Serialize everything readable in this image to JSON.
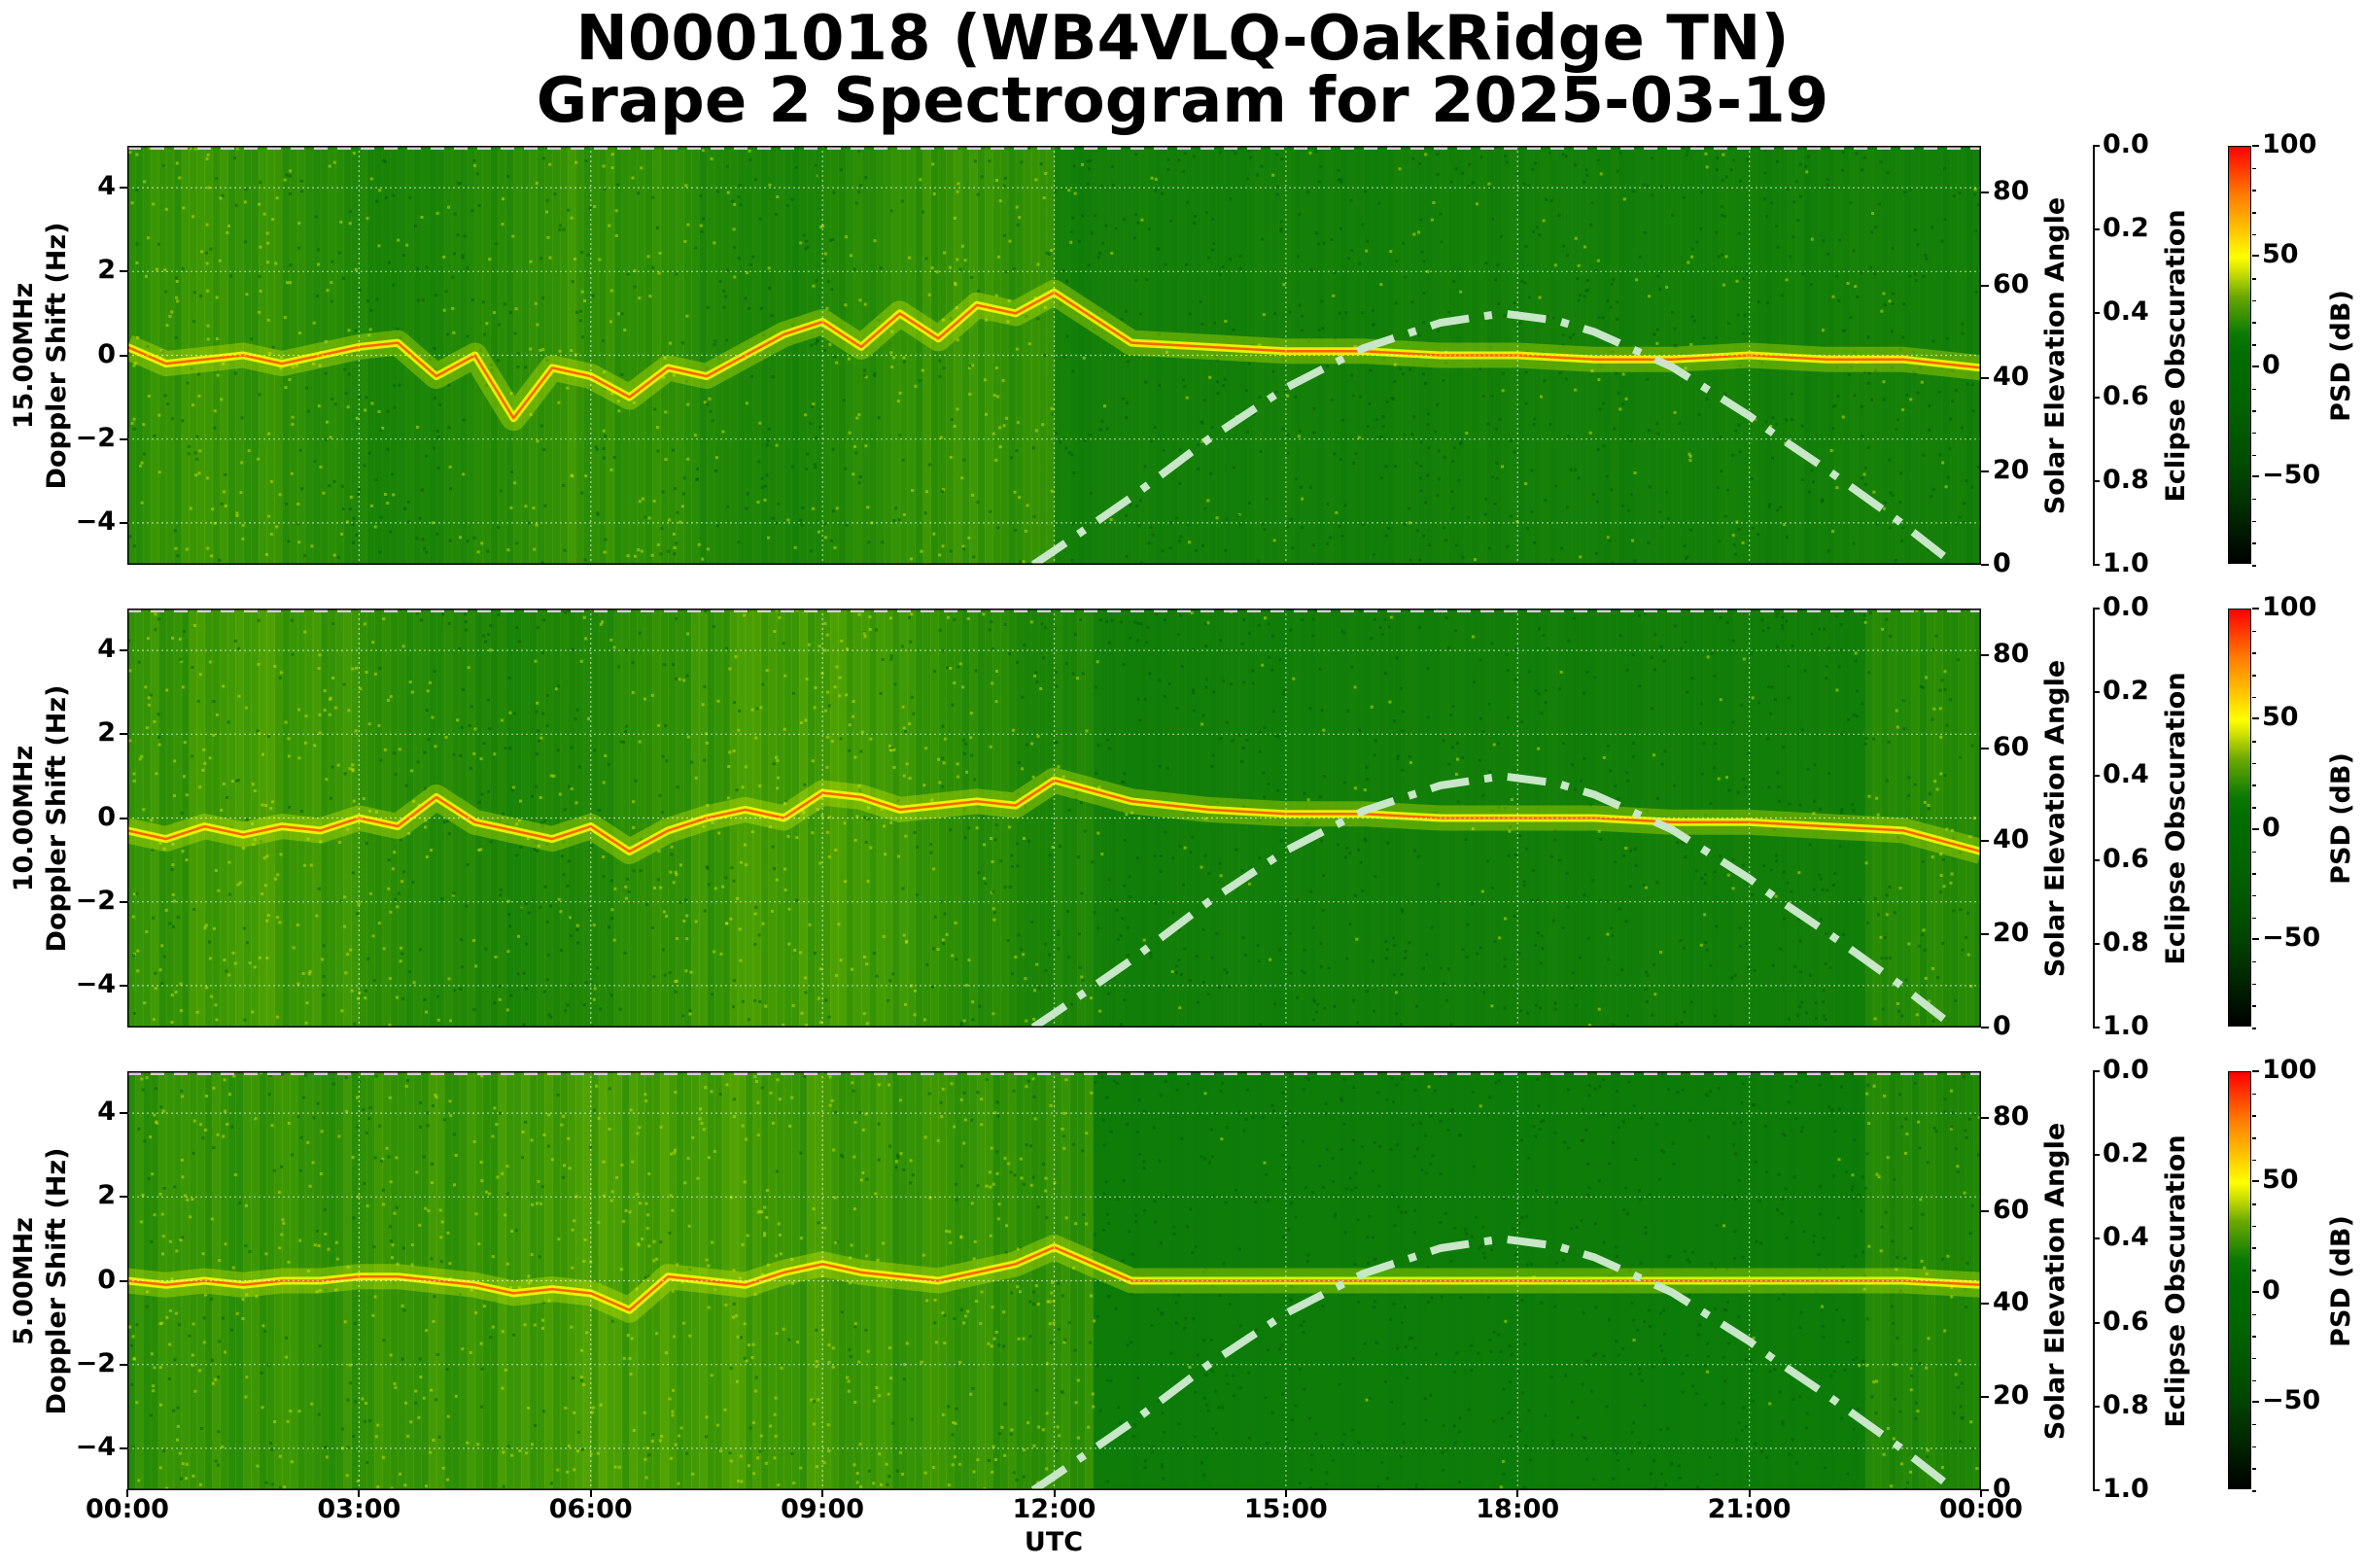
{
  "title": {
    "line1": "N0001018 (WB4VLQ-OakRidge TN)",
    "line2": "Grape 2 Spectrogram for 2025-03-19"
  },
  "x_axis": {
    "label": "UTC",
    "ticks": [
      "00:00",
      "03:00",
      "06:00",
      "09:00",
      "12:00",
      "15:00",
      "18:00",
      "21:00",
      "00:00"
    ]
  },
  "left_axis": {
    "ticks": [
      "4",
      "2",
      "0",
      "−2",
      "−4"
    ]
  },
  "right_axis": {
    "label": "Solar Elevation Angle",
    "ticks": [
      "80",
      "60",
      "40",
      "20",
      "0"
    ]
  },
  "eclipse_axis": {
    "label": "Eclipse Obscuration",
    "ticks": [
      "0.0",
      "0.2",
      "0.4",
      "0.6",
      "0.8",
      "1.0"
    ]
  },
  "colorbar": {
    "label": "PSD (dB)",
    "ticks": [
      "100",
      "50",
      "0",
      "−50"
    ]
  },
  "panels": [
    {
      "frequency_label": "15.00MHz",
      "ylabel": "Doppler Shift (Hz)"
    },
    {
      "frequency_label": "10.00MHz",
      "ylabel": "Doppler Shift (Hz)"
    },
    {
      "frequency_label": "5.00MHz",
      "ylabel": "Doppler Shift (Hz)"
    }
  ],
  "colors": {
    "background_green": "#0a7a0a",
    "solar_curve": "#c8e6c8",
    "trace_yellow": "#ffff00",
    "trace_red": "#ff4000"
  },
  "chart_data": {
    "type": "heatmap",
    "title": "N0001018 (WB4VLQ-OakRidge TN) Grape 2 Spectrogram for 2025-03-19",
    "xlabel": "UTC",
    "x_ticks": [
      "00:00",
      "03:00",
      "06:00",
      "09:00",
      "12:00",
      "15:00",
      "18:00",
      "21:00",
      "00:00"
    ],
    "xlim_hours": [
      0,
      24
    ],
    "grid": true,
    "subplots": [
      {
        "name": "15.00MHz",
        "ylabel": "15.00MHz Doppler Shift (Hz)",
        "ylim": [
          -5,
          5
        ],
        "y_ticks": [
          -4,
          -2,
          0,
          2,
          4
        ],
        "doppler_trace_hz": {
          "x_hours": [
            0,
            0.5,
            1,
            1.5,
            2,
            2.5,
            3,
            3.5,
            4,
            4.5,
            5,
            5.5,
            6,
            6.5,
            7,
            7.5,
            8,
            8.5,
            9,
            9.5,
            10,
            10.5,
            11,
            11.5,
            12,
            13,
            14,
            15,
            16,
            17,
            18,
            19,
            20,
            21,
            22,
            23,
            24
          ],
          "y": [
            0.2,
            -0.2,
            -0.1,
            0.0,
            -0.2,
            0.0,
            0.2,
            0.3,
            -0.5,
            0.0,
            -1.5,
            -0.3,
            -0.5,
            -1.0,
            -0.3,
            -0.5,
            0.0,
            0.5,
            0.8,
            0.2,
            1.0,
            0.4,
            1.2,
            1.0,
            1.5,
            0.3,
            0.2,
            0.1,
            0.1,
            0.0,
            0.0,
            -0.1,
            -0.1,
            0.0,
            -0.1,
            -0.1,
            -0.3
          ]
        }
      },
      {
        "name": "10.00MHz",
        "ylabel": "10.00MHz Doppler Shift (Hz)",
        "ylim": [
          -5,
          5
        ],
        "y_ticks": [
          -4,
          -2,
          0,
          2,
          4
        ],
        "doppler_trace_hz": {
          "x_hours": [
            0,
            0.5,
            1,
            1.5,
            2,
            2.5,
            3,
            3.5,
            4,
            4.5,
            5,
            5.5,
            6,
            6.5,
            7,
            7.5,
            8,
            8.5,
            9,
            9.5,
            10,
            10.5,
            11,
            11.5,
            12,
            13,
            14,
            15,
            16,
            17,
            18,
            19,
            20,
            21,
            22,
            23,
            24
          ],
          "y": [
            -0.3,
            -0.5,
            -0.2,
            -0.4,
            -0.2,
            -0.3,
            0.0,
            -0.2,
            0.5,
            -0.1,
            -0.3,
            -0.5,
            -0.2,
            -0.8,
            -0.3,
            0.0,
            0.2,
            0.0,
            0.6,
            0.5,
            0.2,
            0.3,
            0.4,
            0.3,
            0.9,
            0.4,
            0.2,
            0.1,
            0.1,
            0.0,
            0.0,
            0.0,
            -0.1,
            -0.1,
            -0.2,
            -0.3,
            -0.8
          ]
        }
      },
      {
        "name": "5.00MHz",
        "ylabel": "5.00MHz Doppler Shift (Hz)",
        "ylim": [
          -5,
          5
        ],
        "y_ticks": [
          -4,
          -2,
          0,
          2,
          4
        ],
        "doppler_trace_hz": {
          "x_hours": [
            0,
            0.5,
            1,
            1.5,
            2,
            2.5,
            3,
            3.5,
            4,
            4.5,
            5,
            5.5,
            6,
            6.5,
            7,
            7.5,
            8,
            8.5,
            9,
            9.5,
            10,
            10.5,
            11,
            11.5,
            12,
            13,
            14,
            15,
            16,
            17,
            18,
            19,
            20,
            21,
            22,
            23,
            24
          ],
          "y": [
            0.0,
            -0.1,
            0.0,
            -0.1,
            0.0,
            0.0,
            0.1,
            0.1,
            0.0,
            -0.1,
            -0.3,
            -0.2,
            -0.3,
            -0.7,
            0.1,
            0.0,
            -0.1,
            0.2,
            0.4,
            0.2,
            0.1,
            0.0,
            0.2,
            0.4,
            0.8,
            0.0,
            0.0,
            0.0,
            0.0,
            0.0,
            0.0,
            0.0,
            0.0,
            0.0,
            0.0,
            0.0,
            -0.1
          ]
        }
      }
    ],
    "overlay_solar_elevation": {
      "axis_label": "Solar Elevation Angle",
      "ylim": [
        0,
        90
      ],
      "y_ticks": [
        0,
        20,
        40,
        60,
        80
      ],
      "style": "dash-dot",
      "x_hours": [
        11.73,
        12,
        13,
        14,
        15,
        16,
        17,
        17.8,
        18.5,
        19,
        20,
        21,
        21.33,
        22,
        22.95,
        23.66
      ],
      "y_degrees": [
        0,
        3,
        14.5,
        27,
        38,
        46.5,
        52,
        54,
        52.5,
        50,
        42.5,
        32,
        28,
        20.5,
        9.2,
        0
      ]
    },
    "overlay_eclipse_obscuration": {
      "axis_label": "Eclipse Obscuration",
      "ylim": [
        1.0,
        0.0
      ],
      "y_ticks": [
        0.0,
        0.2,
        0.4,
        0.6,
        0.8,
        1.0
      ],
      "value": 0.0,
      "style": "dashed"
    },
    "colorbar": {
      "label": "PSD (dB)",
      "range": [
        -90,
        100
      ],
      "ticks": [
        -50,
        0,
        50,
        100
      ],
      "colormap": "black-green-yellow-red"
    }
  }
}
